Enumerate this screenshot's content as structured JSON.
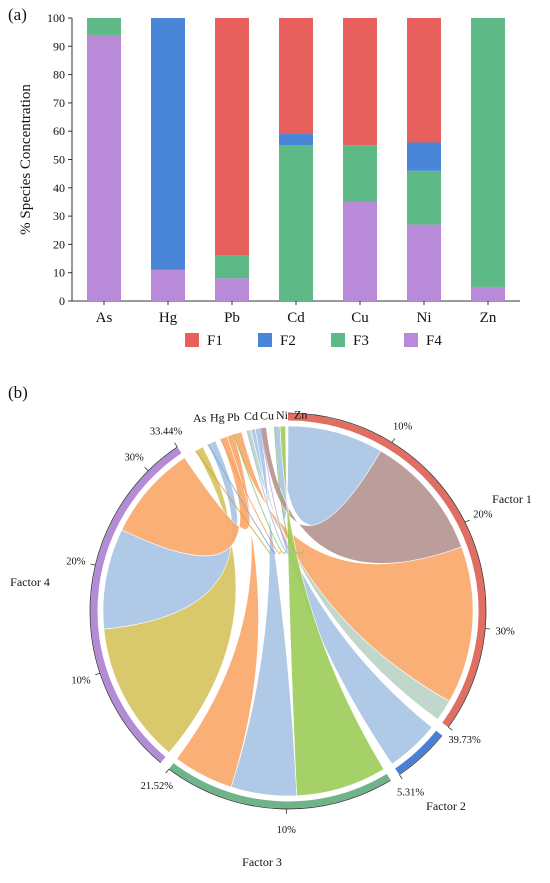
{
  "panel_a_label": "(a)",
  "panel_b_label": "(b)",
  "chart_data": [
    {
      "type": "bar",
      "stacked": true,
      "ylabel": "% Species Concentration",
      "xlabel": "",
      "ylim": [
        0,
        100
      ],
      "yticks": [
        0,
        10,
        20,
        30,
        40,
        50,
        60,
        70,
        80,
        90,
        100
      ],
      "categories": [
        "As",
        "Hg",
        "Pb",
        "Cd",
        "Cu",
        "Ni",
        "Zn"
      ],
      "series": [
        {
          "name": "F4",
          "color": "#b98ad8",
          "values": [
            94,
            11,
            8,
            0,
            35,
            27,
            5
          ]
        },
        {
          "name": "F3",
          "color": "#5db985",
          "values": [
            6,
            0,
            8,
            55,
            20,
            19,
            95
          ]
        },
        {
          "name": "F2",
          "color": "#4a86d8",
          "values": [
            0,
            89,
            0,
            4,
            0,
            10,
            0
          ]
        },
        {
          "name": "F1",
          "color": "#e8605e",
          "values": [
            0,
            0,
            84,
            41,
            45,
            44,
            0
          ]
        }
      ],
      "legend": {
        "placement": "bottom",
        "order": [
          "F1",
          "F2",
          "F3",
          "F4"
        ]
      },
      "grid": false
    },
    {
      "type": "chord",
      "top_labels": [
        "As",
        "Hg",
        "Pb",
        "Cd",
        "Cu",
        "Ni",
        "Zn"
      ],
      "factors": [
        {
          "name": "Factor 1",
          "color": "#e06e62",
          "share_percent": 39.73,
          "ticks": [
            "10%",
            "20%",
            "30%",
            "39.73%"
          ]
        },
        {
          "name": "Factor 2",
          "color": "#4a7fd6",
          "share_percent": 5.31,
          "ticks": [
            "5.31%"
          ]
        },
        {
          "name": "Factor 3",
          "color": "#6fb389",
          "share_percent": 21.52,
          "ticks": [
            "10%",
            "21.52%"
          ]
        },
        {
          "name": "Factor 4",
          "color": "#b48bd6",
          "share_percent": 33.44,
          "ticks": [
            "10%",
            "20%",
            "30%",
            "33.44%"
          ]
        }
      ],
      "ribbon_colors": {
        "light-blue": "#a9c4e4",
        "mauve": "#b59592",
        "orange": "#f9a86a",
        "green": "#9ecd5c",
        "olive": "#d6c460"
      }
    }
  ]
}
